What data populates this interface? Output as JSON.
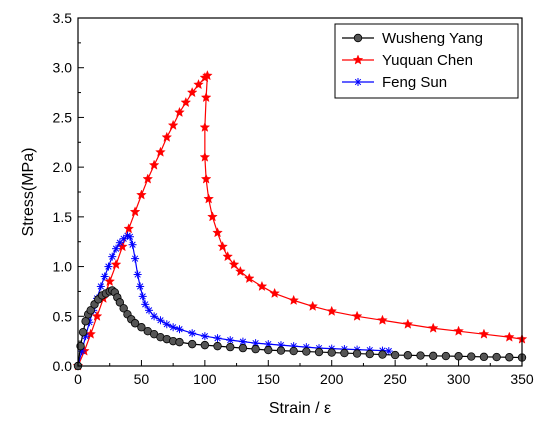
{
  "chart_data": {
    "type": "line",
    "title": "",
    "xlabel": "Strain / ε",
    "ylabel": "Stress(MPa)",
    "xlim": [
      0,
      350
    ],
    "ylim": [
      0,
      3.5
    ],
    "x_ticks": [
      "0",
      "50",
      "100",
      "150",
      "200",
      "250",
      "300",
      "350"
    ],
    "y_ticks": [
      "0.0",
      "0.5",
      "1.0",
      "1.5",
      "2.0",
      "2.5",
      "3.0",
      "3.5"
    ],
    "grid": false,
    "legend_position": "top-right",
    "series": [
      {
        "name": "Wusheng Yang",
        "color": "#000000",
        "marker": "circle",
        "x": [
          0,
          2,
          4,
          6,
          8,
          10,
          13,
          16,
          19,
          22,
          25,
          27,
          29,
          31,
          33,
          36,
          39,
          42,
          45,
          50,
          55,
          60,
          65,
          70,
          75,
          80,
          90,
          100,
          110,
          120,
          130,
          140,
          150,
          160,
          170,
          180,
          190,
          200,
          210,
          220,
          230,
          240,
          250,
          260,
          270,
          280,
          290,
          300,
          310,
          320,
          330,
          340,
          350
        ],
        "y": [
          0.0,
          0.2,
          0.34,
          0.45,
          0.52,
          0.56,
          0.62,
          0.67,
          0.71,
          0.73,
          0.75,
          0.76,
          0.74,
          0.69,
          0.64,
          0.58,
          0.52,
          0.47,
          0.43,
          0.39,
          0.35,
          0.32,
          0.29,
          0.27,
          0.25,
          0.24,
          0.22,
          0.21,
          0.2,
          0.19,
          0.18,
          0.17,
          0.16,
          0.155,
          0.15,
          0.145,
          0.14,
          0.135,
          0.13,
          0.125,
          0.12,
          0.115,
          0.11,
          0.108,
          0.105,
          0.102,
          0.1,
          0.098,
          0.095,
          0.092,
          0.09,
          0.088,
          0.085
        ]
      },
      {
        "name": "Yuquan Chen",
        "color": "#ff0000",
        "marker": "star",
        "x": [
          0,
          5,
          10,
          15,
          20,
          25,
          30,
          35,
          40,
          45,
          50,
          55,
          60,
          65,
          70,
          75,
          80,
          85,
          90,
          95,
          100,
          102,
          101,
          100,
          100,
          101,
          103,
          106,
          110,
          114,
          118,
          123,
          128,
          135,
          145,
          155,
          170,
          185,
          200,
          220,
          240,
          260,
          280,
          300,
          320,
          340,
          350
        ],
        "y": [
          0.0,
          0.15,
          0.32,
          0.5,
          0.68,
          0.85,
          1.02,
          1.2,
          1.38,
          1.55,
          1.72,
          1.88,
          2.02,
          2.15,
          2.3,
          2.42,
          2.55,
          2.65,
          2.75,
          2.83,
          2.9,
          2.92,
          2.7,
          2.4,
          2.1,
          1.88,
          1.68,
          1.5,
          1.34,
          1.2,
          1.1,
          1.02,
          0.95,
          0.88,
          0.8,
          0.73,
          0.66,
          0.6,
          0.55,
          0.5,
          0.46,
          0.42,
          0.38,
          0.35,
          0.32,
          0.29,
          0.27
        ]
      },
      {
        "name": "Feng Sun",
        "color": "#0000ff",
        "marker": "asterisk",
        "x": [
          0,
          3,
          6,
          9,
          12,
          15,
          18,
          21,
          24,
          27,
          30,
          33,
          36,
          39,
          41,
          43,
          45,
          47,
          49,
          51,
          53,
          56,
          60,
          65,
          70,
          75,
          80,
          90,
          100,
          110,
          120,
          130,
          140,
          150,
          160,
          170,
          180,
          190,
          200,
          210,
          220,
          230,
          240,
          245
        ],
        "y": [
          0.0,
          0.15,
          0.3,
          0.44,
          0.56,
          0.68,
          0.8,
          0.9,
          1.0,
          1.1,
          1.18,
          1.24,
          1.28,
          1.31,
          1.3,
          1.22,
          1.08,
          0.92,
          0.8,
          0.7,
          0.62,
          0.56,
          0.5,
          0.46,
          0.42,
          0.39,
          0.37,
          0.33,
          0.3,
          0.28,
          0.26,
          0.245,
          0.23,
          0.22,
          0.21,
          0.2,
          0.19,
          0.18,
          0.175,
          0.17,
          0.165,
          0.16,
          0.155,
          0.15
        ]
      }
    ]
  }
}
